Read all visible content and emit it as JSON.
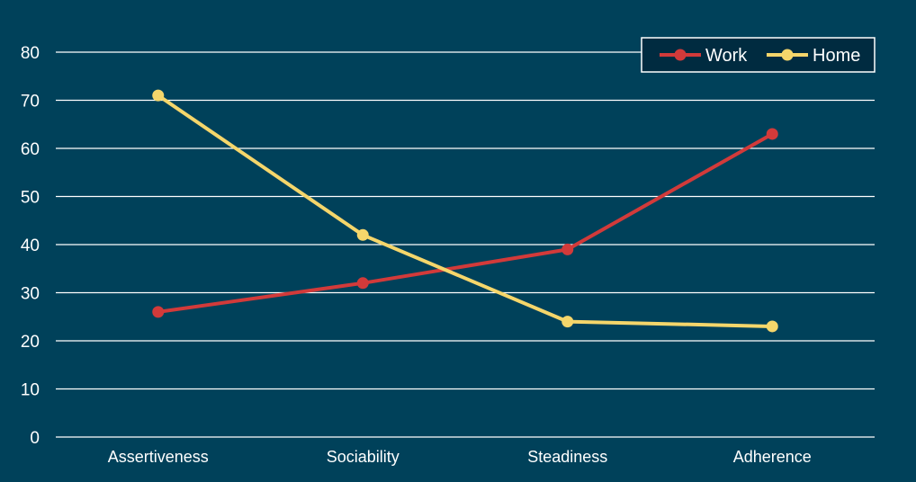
{
  "colors": {
    "background": "#00415a",
    "gridline": "#ffffff",
    "text": "#ffffff",
    "legend_bg": "#002b40"
  },
  "chart_data": {
    "type": "line",
    "title": "",
    "xlabel": "",
    "ylabel": "",
    "categories": [
      "Assertiveness",
      "Sociability",
      "Steadiness",
      "Adherence"
    ],
    "ylim": [
      0,
      80
    ],
    "yticks": [
      0,
      10,
      20,
      30,
      40,
      50,
      60,
      70,
      80
    ],
    "grid": true,
    "legend_position": "top-right",
    "series": [
      {
        "name": "Work",
        "color": "#d23a3a",
        "values": [
          26,
          32,
          39,
          63
        ]
      },
      {
        "name": "Home",
        "color": "#f5d66b",
        "values": [
          71,
          42,
          24,
          23
        ]
      }
    ]
  }
}
